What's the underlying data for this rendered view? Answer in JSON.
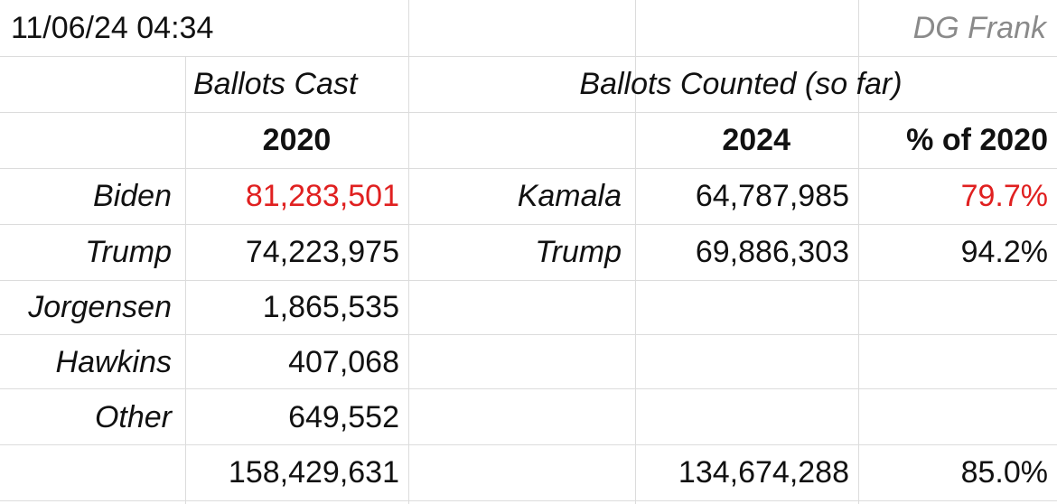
{
  "timestamp": "11/06/24  04:34",
  "author": "DG Frank",
  "headers": {
    "ballots_cast": "Ballots Cast",
    "ballots_counted": "Ballots Counted (so far)",
    "year_2020": "2020",
    "year_2024": "2024",
    "pct_of_2020": "% of 2020"
  },
  "rows_2020": [
    {
      "name": "Biden",
      "votes": "81,283,501",
      "color": "#e02020"
    },
    {
      "name": "Trump",
      "votes": "74,223,975"
    },
    {
      "name": "Jorgensen",
      "votes": "1,865,535"
    },
    {
      "name": "Hawkins",
      "votes": "407,068"
    },
    {
      "name": "Other",
      "votes": "649,552"
    }
  ],
  "rows_2024": [
    {
      "name": "Kamala",
      "votes": "64,787,985",
      "pct": "79.7%",
      "pct_color": "#e02020"
    },
    {
      "name": "Trump",
      "votes": "69,886,303",
      "pct": "94.2%"
    }
  ],
  "totals": {
    "votes_2020": "158,429,631",
    "votes_2024": "134,674,288",
    "pct": "85.0%"
  }
}
